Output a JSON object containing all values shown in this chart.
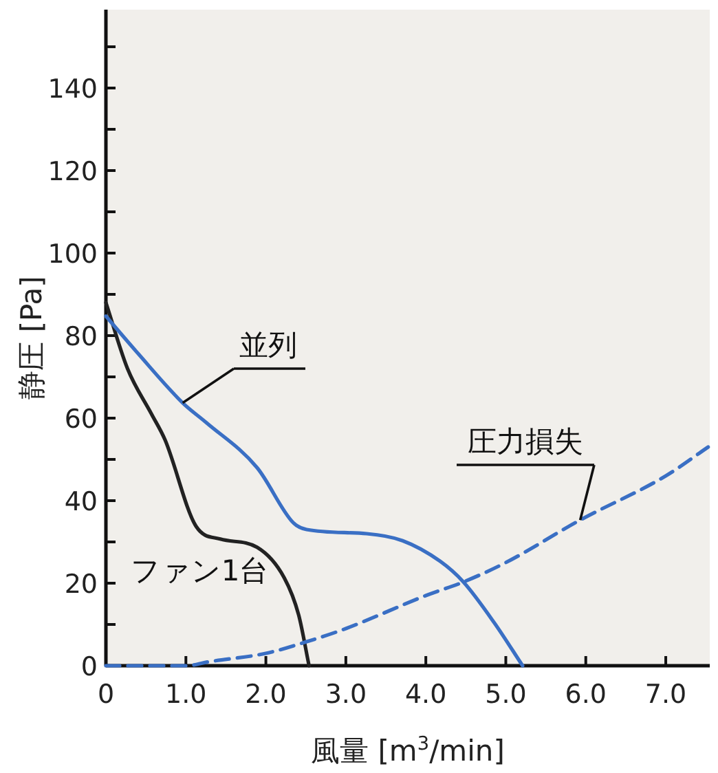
{
  "chart_data": {
    "type": "line",
    "xlabel": "風量 [m$^{3}$/min]",
    "ylabel": "静圧 [Pa]",
    "xlim": [
      0,
      7.55
    ],
    "ylim": [
      0,
      159
    ],
    "xticks": [
      0,
      {
        "value": 1,
        "label": "1.0"
      },
      {
        "value": 2,
        "label": "2.0"
      },
      {
        "value": 3,
        "label": "3.0"
      },
      {
        "value": 4,
        "label": "4.0"
      },
      {
        "value": 5,
        "label": "5.0"
      },
      {
        "value": 6,
        "label": "6.0"
      },
      {
        "value": 7,
        "label": "7.0"
      }
    ],
    "yticks": [
      0,
      {
        "value": 10,
        "label": null
      },
      20,
      {
        "value": 30,
        "label": null
      },
      40,
      {
        "value": 50,
        "label": null
      },
      60,
      {
        "value": 70,
        "label": null
      },
      80,
      {
        "value": 90,
        "label": null
      },
      100,
      {
        "value": 110,
        "label": null
      },
      120,
      {
        "value": 130,
        "label": null
      },
      140,
      {
        "value": 150,
        "label": null
      }
    ],
    "grid": false,
    "marker": "none",
    "series": [
      {
        "name": "ファン1台",
        "color": "#222222",
        "line_style": "solid",
        "x": [
          0,
          0.27,
          0.57,
          0.74,
          1.13,
          1.43,
          1.89,
          2.23,
          2.41,
          2.54
        ],
        "values": [
          88,
          72,
          61,
          54.7,
          33.7,
          30.7,
          28.7,
          21.3,
          12.3,
          0
        ]
      },
      {
        "name": "並列",
        "color": "#3a6fc4",
        "line_style": "solid",
        "x": [
          0,
          0.4,
          0.96,
          1.25,
          1.89,
          2.34,
          2.51,
          3.26,
          3.71,
          4.18,
          4.47,
          4.86,
          5.21
        ],
        "values": [
          84.7,
          75.7,
          63.7,
          59,
          48,
          34.7,
          33,
          32,
          30.3,
          25.3,
          20.3,
          10.3,
          0
        ]
      },
      {
        "name": "圧力損失",
        "color": "#3a6fc4",
        "line_style": "dashed",
        "x": [
          0,
          1.0,
          1.3,
          2.0,
          2.54,
          3.0,
          4.0,
          4.47,
          5.0,
          5.93,
          7.0,
          7.53
        ],
        "values": [
          0,
          0,
          1,
          3,
          6,
          9,
          17,
          20.3,
          25,
          35.3,
          46,
          53
        ]
      }
    ]
  }
}
